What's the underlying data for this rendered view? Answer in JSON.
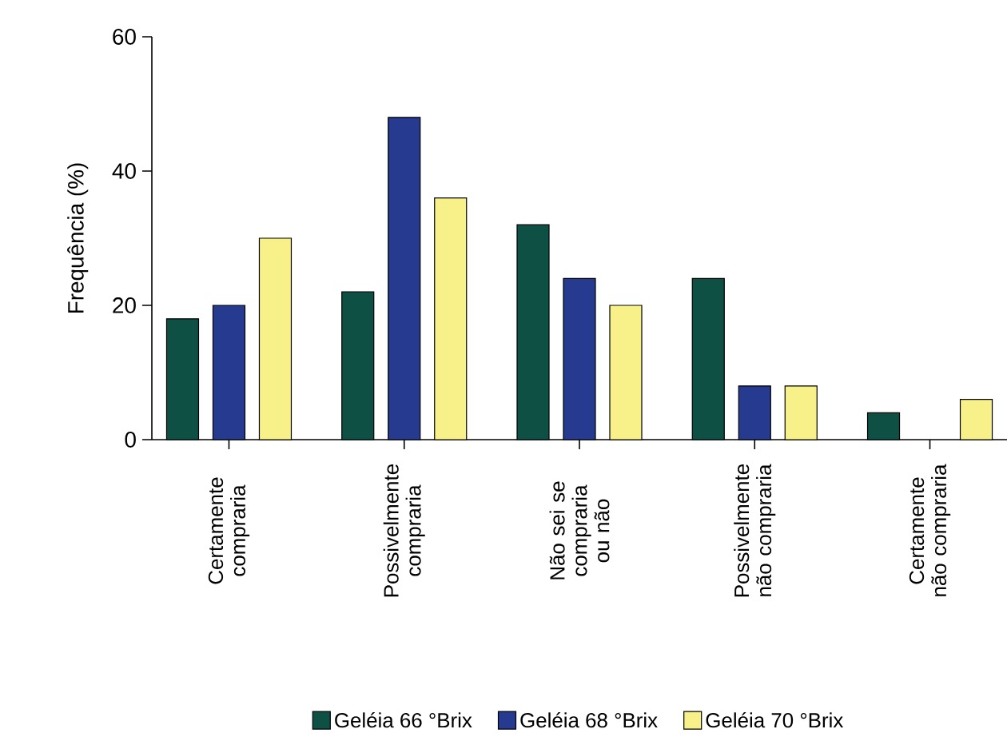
{
  "chart_data": {
    "type": "bar",
    "ylabel": "Frequência (%)",
    "categories": [
      "Certamente compraria",
      "Possivelmente compraria",
      "Não sei se compraria ou não",
      "Possivelmente não compraria",
      "Certamente não compraria"
    ],
    "series": [
      {
        "name": "Geléia 66 °Brix",
        "color": "#0f5045",
        "values": [
          18,
          22,
          32,
          24,
          4
        ]
      },
      {
        "name": "Geléia 68 °Brix",
        "color": "#263a8f",
        "values": [
          20,
          48,
          24,
          8,
          null
        ]
      },
      {
        "name": "Geléia 70 °Brix",
        "color": "#f8f088",
        "values": [
          30,
          36,
          20,
          8,
          6
        ]
      }
    ],
    "ylim": [
      0,
      60
    ],
    "yticks": [
      0,
      20,
      40,
      60
    ],
    "legend": "bottom"
  }
}
